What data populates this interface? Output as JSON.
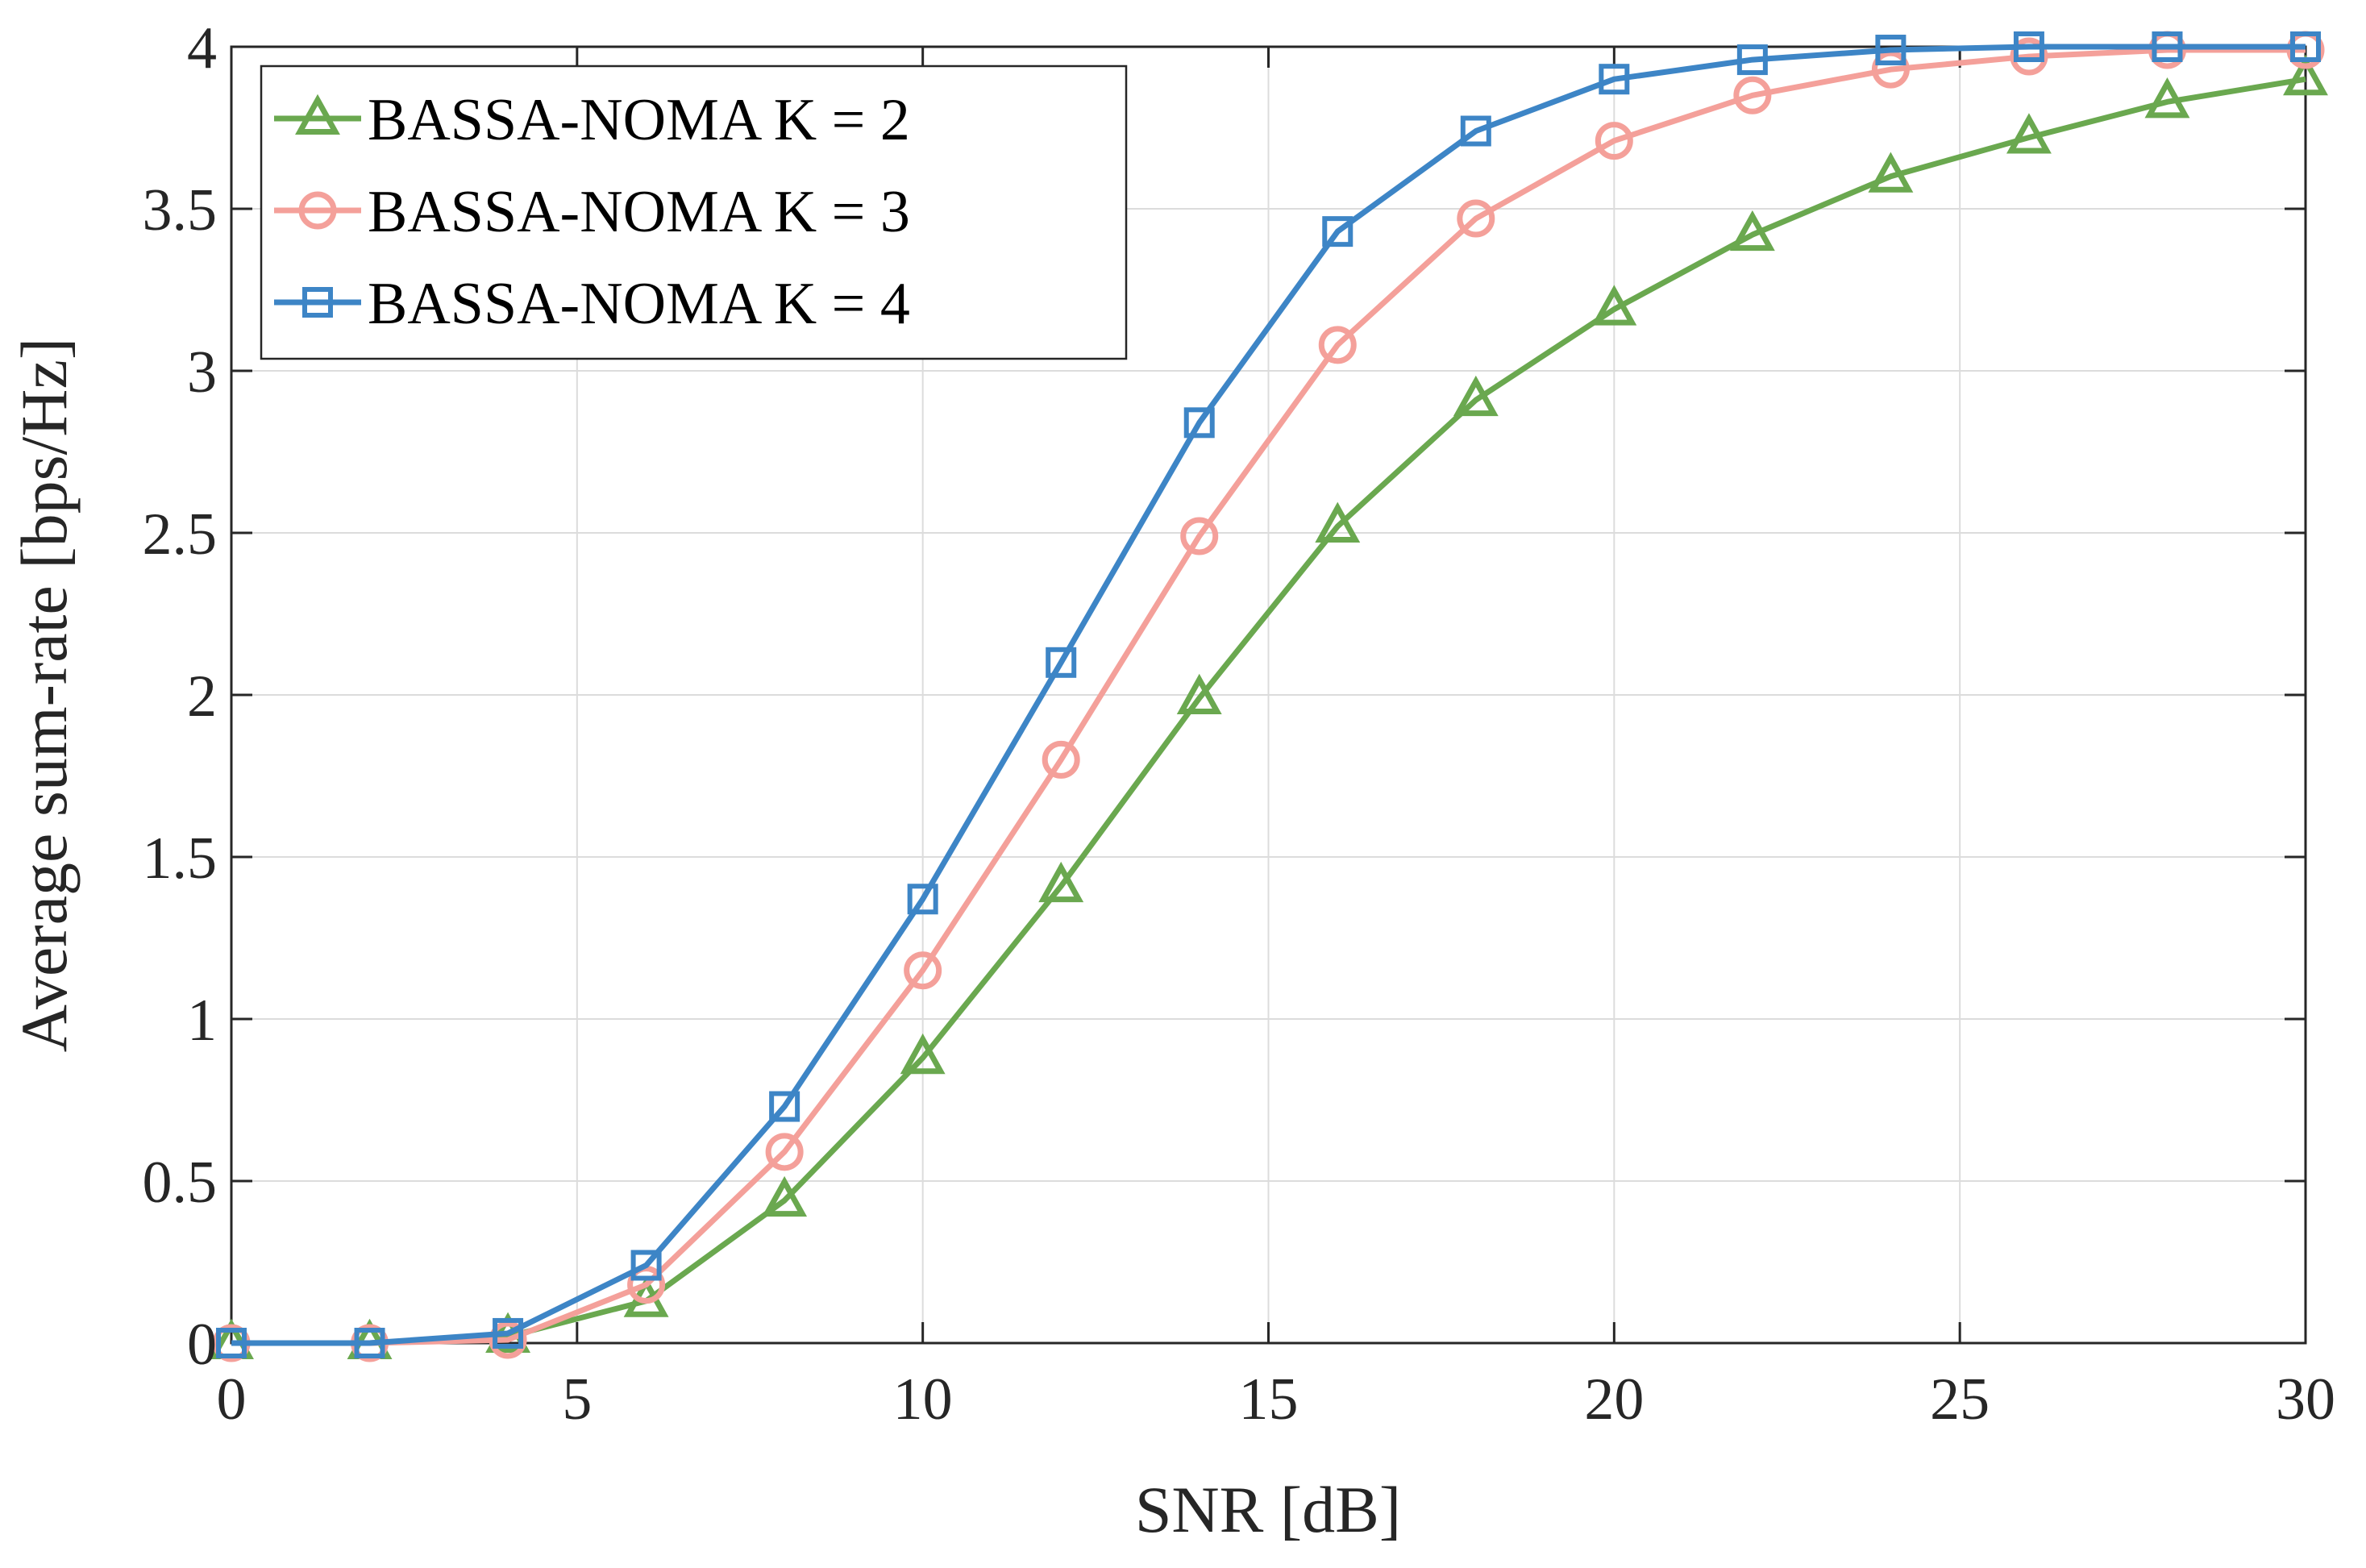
{
  "chart_data": {
    "type": "line",
    "title": "",
    "xlabel": "SNR [dB]",
    "ylabel": "Average sum-rate [bps/Hz]",
    "xlim": [
      0,
      30
    ],
    "ylim": [
      0,
      4
    ],
    "xticks": [
      0,
      5,
      10,
      15,
      20,
      25,
      30
    ],
    "xtick_labels": [
      "0",
      "5",
      "10",
      "15",
      "20",
      "25",
      "30"
    ],
    "yticks": [
      0,
      0.5,
      1,
      1.5,
      2,
      2.5,
      3,
      3.5,
      4
    ],
    "ytick_labels": [
      "0",
      "0.5",
      "1",
      "1.5",
      "2",
      "2.5",
      "3",
      "3.5",
      "4"
    ],
    "grid": true,
    "legend_position": "top-left",
    "x": [
      0,
      2,
      4,
      6,
      8,
      10,
      12,
      14,
      16,
      18,
      20,
      22,
      24,
      26,
      28,
      30
    ],
    "series": [
      {
        "name": "BASSA-NOMA K = 2",
        "color": "#6aa84f",
        "marker": "triangle",
        "values": [
          0,
          0,
          0.02,
          0.13,
          0.44,
          0.88,
          1.41,
          1.99,
          2.52,
          2.91,
          3.19,
          3.42,
          3.6,
          3.72,
          3.83,
          3.9
        ]
      },
      {
        "name": "BASSA-NOMA K = 3",
        "color": "#f4a09a",
        "marker": "circle",
        "values": [
          0,
          0,
          0.01,
          0.18,
          0.59,
          1.15,
          1.8,
          2.49,
          3.08,
          3.47,
          3.71,
          3.85,
          3.93,
          3.97,
          3.99,
          3.99
        ]
      },
      {
        "name": "BASSA-NOMA K = 4",
        "color": "#3d85c6",
        "marker": "square",
        "values": [
          0,
          0,
          0.03,
          0.24,
          0.73,
          1.37,
          2.1,
          2.84,
          3.43,
          3.74,
          3.9,
          3.96,
          3.99,
          4.0,
          4.0,
          4.0
        ]
      }
    ]
  }
}
